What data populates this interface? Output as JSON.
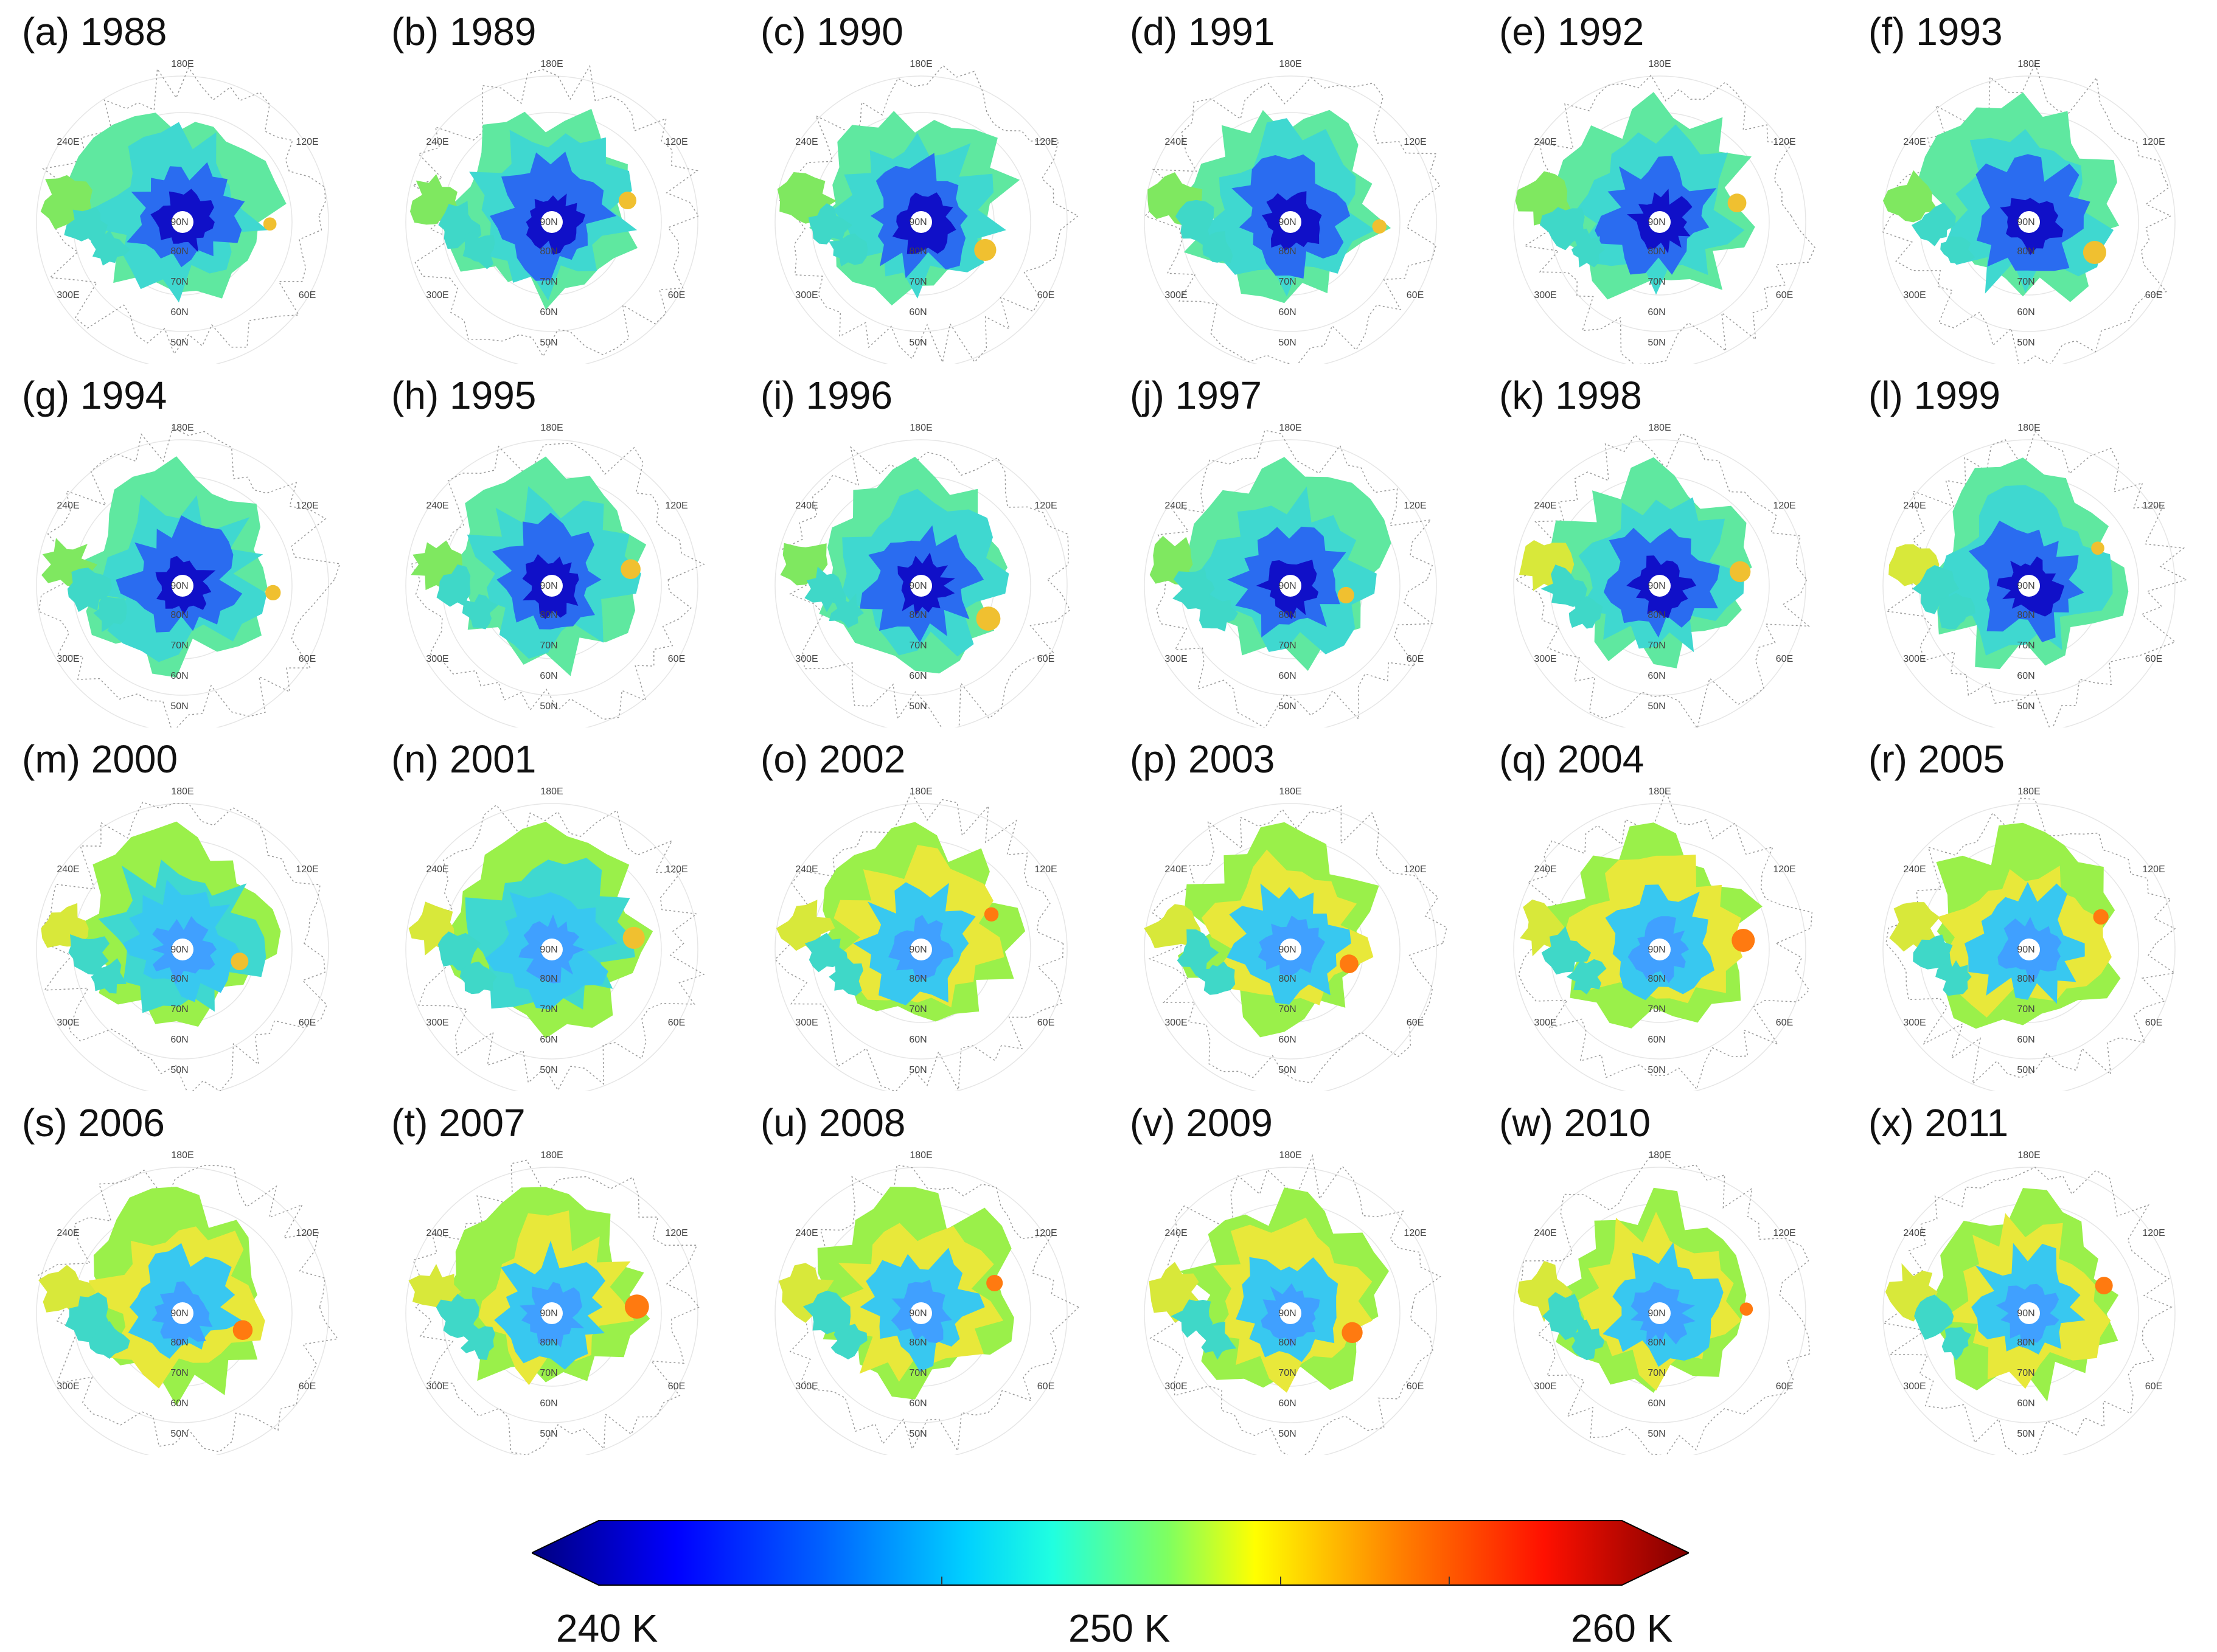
{
  "panels": [
    {
      "label": "(a) 1988"
    },
    {
      "label": "(b) 1989"
    },
    {
      "label": "(c) 1990"
    },
    {
      "label": "(d) 1991"
    },
    {
      "label": "(e) 1992"
    },
    {
      "label": "(f) 1993"
    },
    {
      "label": "(g) 1994"
    },
    {
      "label": "(h) 1995"
    },
    {
      "label": "(i) 1996"
    },
    {
      "label": "(j) 1997"
    },
    {
      "label": "(k) 1998"
    },
    {
      "label": "(l) 1999"
    },
    {
      "label": "(m) 2000"
    },
    {
      "label": "(n) 2001"
    },
    {
      "label": "(o) 2002"
    },
    {
      "label": "(p) 2003"
    },
    {
      "label": "(q) 2004"
    },
    {
      "label": "(r) 2005"
    },
    {
      "label": "(s) 2006"
    },
    {
      "label": "(t) 2007"
    },
    {
      "label": "(u) 2008"
    },
    {
      "label": "(v) 2009"
    },
    {
      "label": "(w) 2010"
    },
    {
      "label": "(x) 2011"
    }
  ],
  "map_labels": {
    "lon_top": "180E",
    "lon_upper_left": "240E",
    "lon_upper_right": "120E",
    "lon_lower_left": "300E",
    "lon_lower_right": "60E",
    "lat_center": "90N",
    "lat_80": "80N",
    "lat_70": "70N",
    "lat_60": "60N",
    "lat_50": "50N"
  },
  "colorbar": {
    "min_label": "240 K",
    "mid_label": "250 K",
    "max_label": "260 K",
    "min_value": 240,
    "max_value": 260,
    "colors": [
      "#00007f",
      "#0000ff",
      "#007fff",
      "#00ffff",
      "#7fff7f",
      "#ffff00",
      "#ff7f00",
      "#ff0000",
      "#7f0000"
    ]
  }
}
